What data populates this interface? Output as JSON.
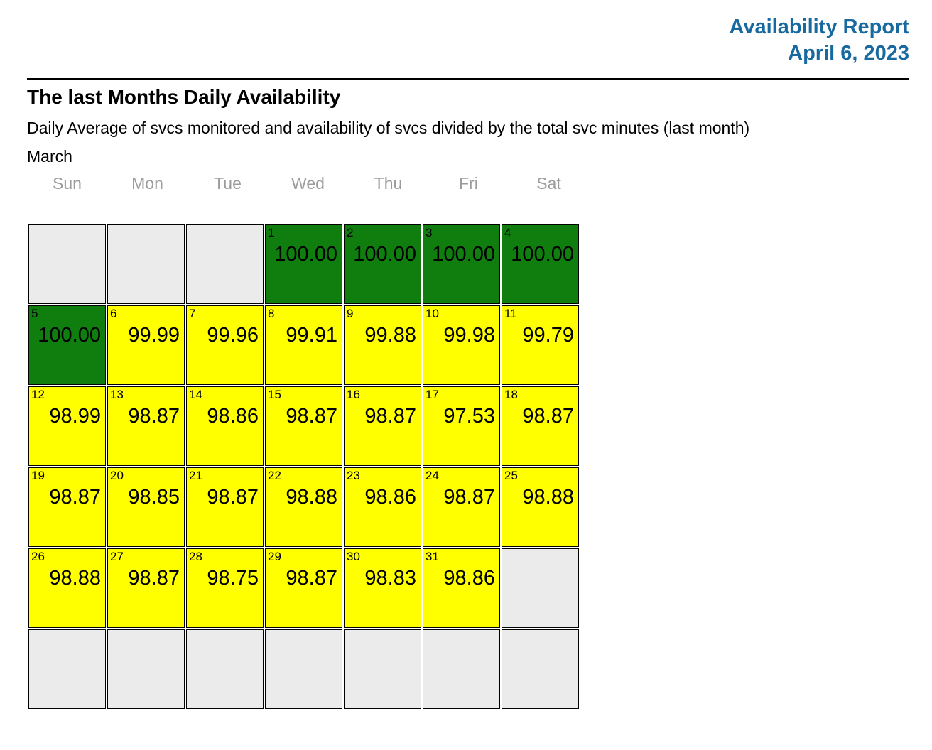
{
  "header": {
    "title": "Availability Report",
    "date": "April 6, 2023"
  },
  "section": {
    "heading": "The last Months Daily Availability",
    "subtitle": "Daily Average of svcs monitored and availability of svcs divided by the total svc minutes (last month)",
    "month": "March"
  },
  "calendar": {
    "weekdays": [
      "Sun",
      "Mon",
      "Tue",
      "Wed",
      "Thu",
      "Fri",
      "Sat"
    ],
    "weeks": [
      [
        {
          "state": "empty"
        },
        {
          "state": "empty"
        },
        {
          "state": "empty"
        },
        {
          "day": "1",
          "value": "100.00",
          "state": "green"
        },
        {
          "day": "2",
          "value": "100.00",
          "state": "green"
        },
        {
          "day": "3",
          "value": "100.00",
          "state": "green"
        },
        {
          "day": "4",
          "value": "100.00",
          "state": "green"
        }
      ],
      [
        {
          "day": "5",
          "value": "100.00",
          "state": "green"
        },
        {
          "day": "6",
          "value": "99.99",
          "state": "yellow"
        },
        {
          "day": "7",
          "value": "99.96",
          "state": "yellow"
        },
        {
          "day": "8",
          "value": "99.91",
          "state": "yellow"
        },
        {
          "day": "9",
          "value": "99.88",
          "state": "yellow"
        },
        {
          "day": "10",
          "value": "99.98",
          "state": "yellow"
        },
        {
          "day": "11",
          "value": "99.79",
          "state": "yellow"
        }
      ],
      [
        {
          "day": "12",
          "value": "98.99",
          "state": "yellow"
        },
        {
          "day": "13",
          "value": "98.87",
          "state": "yellow"
        },
        {
          "day": "14",
          "value": "98.86",
          "state": "yellow"
        },
        {
          "day": "15",
          "value": "98.87",
          "state": "yellow"
        },
        {
          "day": "16",
          "value": "98.87",
          "state": "yellow"
        },
        {
          "day": "17",
          "value": "97.53",
          "state": "yellow"
        },
        {
          "day": "18",
          "value": "98.87",
          "state": "yellow"
        }
      ],
      [
        {
          "day": "19",
          "value": "98.87",
          "state": "yellow"
        },
        {
          "day": "20",
          "value": "98.85",
          "state": "yellow"
        },
        {
          "day": "21",
          "value": "98.87",
          "state": "yellow"
        },
        {
          "day": "22",
          "value": "98.88",
          "state": "yellow"
        },
        {
          "day": "23",
          "value": "98.86",
          "state": "yellow"
        },
        {
          "day": "24",
          "value": "98.87",
          "state": "yellow"
        },
        {
          "day": "25",
          "value": "98.88",
          "state": "yellow"
        }
      ],
      [
        {
          "day": "26",
          "value": "98.88",
          "state": "yellow"
        },
        {
          "day": "27",
          "value": "98.87",
          "state": "yellow"
        },
        {
          "day": "28",
          "value": "98.75",
          "state": "yellow"
        },
        {
          "day": "29",
          "value": "98.87",
          "state": "yellow"
        },
        {
          "day": "30",
          "value": "98.83",
          "state": "yellow"
        },
        {
          "day": "31",
          "value": "98.86",
          "state": "yellow"
        },
        {
          "state": "empty"
        }
      ],
      [
        {
          "state": "empty"
        },
        {
          "state": "empty"
        },
        {
          "state": "empty"
        },
        {
          "state": "empty"
        },
        {
          "state": "empty"
        },
        {
          "state": "empty"
        },
        {
          "state": "empty"
        }
      ]
    ]
  },
  "colors": {
    "accent_blue": "#17699f",
    "green": "#0f7e0f",
    "yellow": "#ffff00",
    "empty_cell": "#ebebeb",
    "weekday_gray": "#9c9c9c",
    "border": "#000000"
  },
  "chart_data": {
    "type": "heatmap",
    "title": "The last Months Daily Availability",
    "subtitle": "Daily Average of svcs monitored and availability of svcs divided by the total svc minutes (last month)",
    "month": "March",
    "unit": "availability percent",
    "days": [
      1,
      2,
      3,
      4,
      5,
      6,
      7,
      8,
      9,
      10,
      11,
      12,
      13,
      14,
      15,
      16,
      17,
      18,
      19,
      20,
      21,
      22,
      23,
      24,
      25,
      26,
      27,
      28,
      29,
      30,
      31
    ],
    "values": [
      100.0,
      100.0,
      100.0,
      100.0,
      100.0,
      99.99,
      99.96,
      99.91,
      99.88,
      99.98,
      99.79,
      98.99,
      98.87,
      98.86,
      98.87,
      98.87,
      97.53,
      98.87,
      98.87,
      98.85,
      98.87,
      98.88,
      98.86,
      98.87,
      98.88,
      98.88,
      98.87,
      98.75,
      98.87,
      98.83,
      98.86
    ],
    "color_legend": {
      "green": "100.00",
      "yellow": "below 100.00"
    }
  }
}
